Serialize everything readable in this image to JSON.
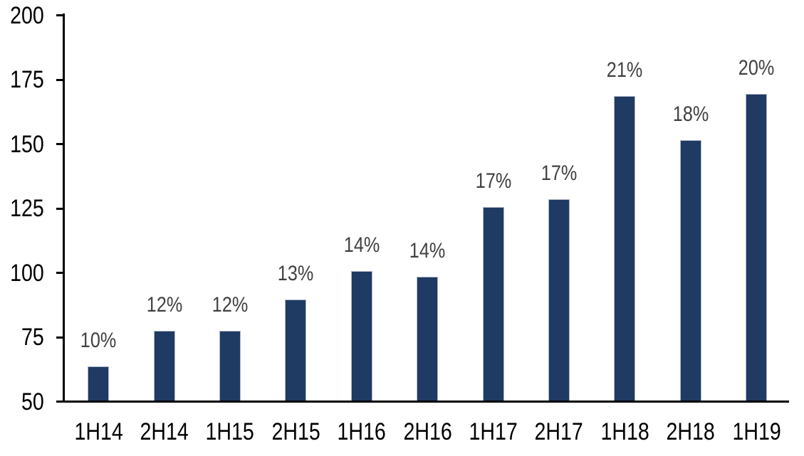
{
  "chart_data": {
    "type": "bar",
    "categories": [
      "1H14",
      "2H14",
      "1H15",
      "2H15",
      "1H16",
      "2H16",
      "1H17",
      "2H17",
      "1H18",
      "2H18",
      "1H19"
    ],
    "values": [
      64,
      78,
      78,
      90,
      101,
      99,
      126,
      129,
      169,
      152,
      170
    ],
    "bar_labels": [
      "10%",
      "12%",
      "12%",
      "13%",
      "14%",
      "14%",
      "17%",
      "17%",
      "21%",
      "18%",
      "20%"
    ],
    "title": "",
    "xlabel": "",
    "ylabel": "",
    "ylim": [
      50,
      200
    ],
    "yticks": [
      50,
      75,
      100,
      125,
      150,
      175,
      200
    ],
    "grid": false,
    "legend": false,
    "colors": {
      "bar_fill": "#1F3A63",
      "bar_border": "#B0B9C9",
      "data_label": "#404040",
      "axis_line": "#000000",
      "axis_label": "#000000",
      "background": "#FFFFFF"
    }
  }
}
